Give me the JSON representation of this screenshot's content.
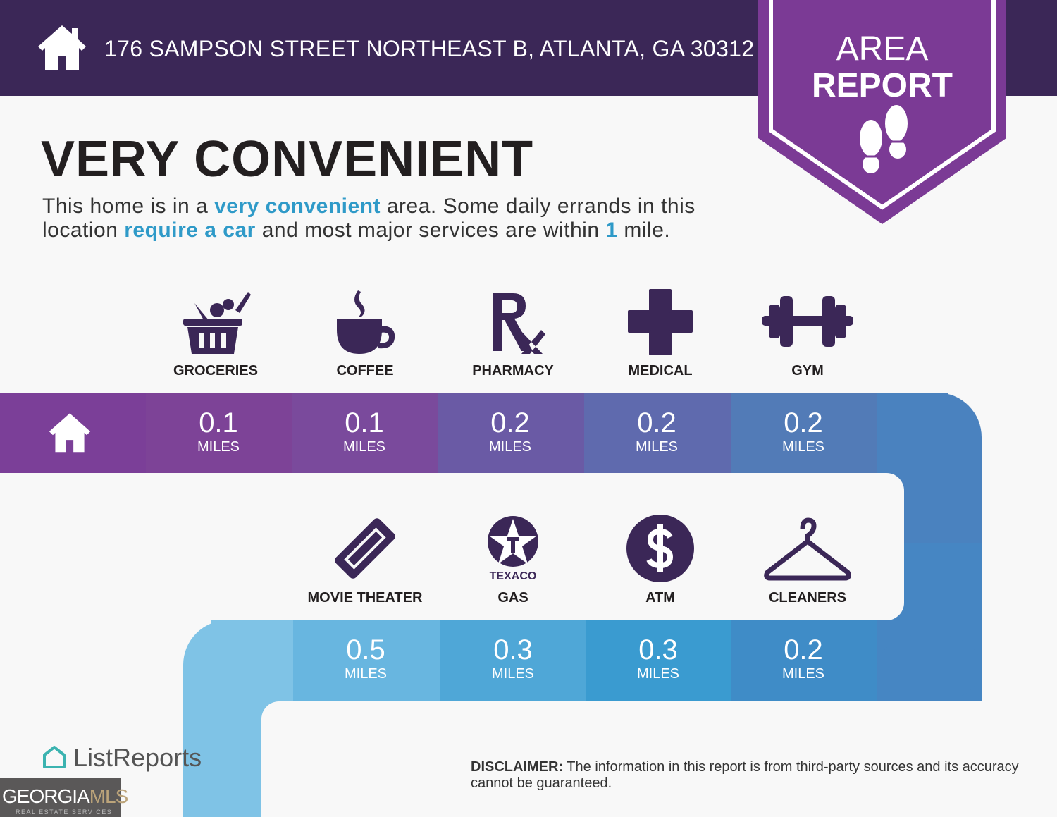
{
  "header": {
    "address": "176 SAMPSON STREET NORTHEAST B, ATLANTA, GA 30312",
    "home_icon": "house-icon"
  },
  "badge": {
    "line1": "AREA",
    "line2": "REPORT",
    "icon": "footprints-icon",
    "color": "#7b3a95"
  },
  "headline": "VERY CONVENIENT",
  "description": {
    "p1": "This home is in a ",
    "h1": "very convenient",
    "p2": " area. Some daily errands in this location ",
    "h2": "require a car",
    "p3": " and most major services are within ",
    "h3": "1",
    "p4": " mile."
  },
  "unit": "MILES",
  "row1": [
    {
      "label": "GROCERIES",
      "value": "0.1",
      "icon": "grocery-basket-icon",
      "color": "#7d4397"
    },
    {
      "label": "COFFEE",
      "value": "0.1",
      "icon": "coffee-cup-icon",
      "color": "#7a4a9c"
    },
    {
      "label": "PHARMACY",
      "value": "0.2",
      "icon": "rx-icon",
      "color": "#6a5aa5"
    },
    {
      "label": "MEDICAL",
      "value": "0.2",
      "icon": "medical-cross-icon",
      "color": "#5f6aae"
    },
    {
      "label": "GYM",
      "value": "0.2",
      "icon": "dumbbell-icon",
      "color": "#527bb7"
    }
  ],
  "row2": [
    {
      "label": "MOVIE THEATER",
      "value": "0.5",
      "icon": "ticket-icon",
      "color": "#68b6e0"
    },
    {
      "label": "GAS",
      "value": "0.3",
      "icon": "texaco-icon",
      "brand": "TEXACO",
      "color": "#4fa7d7"
    },
    {
      "label": "ATM",
      "value": "0.3",
      "icon": "dollar-icon",
      "color": "#3a9bd0"
    },
    {
      "label": "CLEANERS",
      "value": "0.2",
      "icon": "hanger-icon",
      "color": "#3f8cc7"
    }
  ],
  "disclaimer": {
    "bold": "DISCLAIMER:",
    "text": " The information in this report is from third-party sources and its accuracy cannot be guaranteed."
  },
  "footer": {
    "listreports": "ListReports",
    "gmls1": "GEORGIA",
    "gmls2": "MLS",
    "gmls3": "REAL ESTATE SERVICES"
  }
}
